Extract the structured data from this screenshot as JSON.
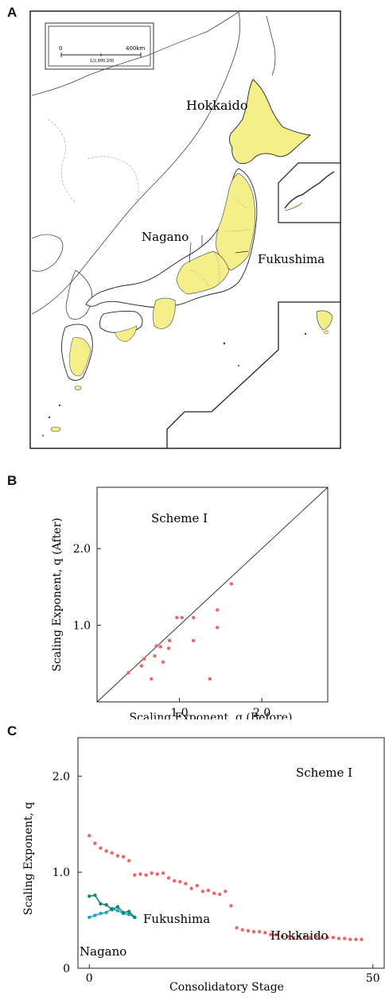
{
  "panels": {
    "a": {
      "letter": "A",
      "scale_bar": {
        "left": "0",
        "right": "400km",
        "note": "1/2,900,200"
      },
      "labels": {
        "hokkaido": "Hokkaido",
        "nagano": "Nagano",
        "fukushima": "Fukushima"
      },
      "colors": {
        "highlight": "#f5ef8a",
        "outline": "#222222"
      }
    },
    "b": {
      "letter": "B"
    },
    "c": {
      "letter": "C"
    }
  },
  "chart_data": [
    {
      "type": "scatter",
      "panel": "B",
      "annotation": "Scheme I",
      "xlabel": "Scaling Exponent, q (Before)",
      "ylabel": "Scaling Exponent, q (After)",
      "xlim": [
        0,
        2.8
      ],
      "ylim": [
        0,
        2.8
      ],
      "xticks": [
        1.0,
        2.0
      ],
      "yticks": [
        1.0,
        2.0
      ],
      "xticklabels": [
        "1.0",
        "2.0"
      ],
      "yticklabels": [
        "1.0",
        "2.0"
      ],
      "diagonal": true,
      "color": "#f06464",
      "points": [
        {
          "x": 0.38,
          "y": 0.38
        },
        {
          "x": 0.54,
          "y": 0.47
        },
        {
          "x": 0.57,
          "y": 0.56
        },
        {
          "x": 0.66,
          "y": 0.3
        },
        {
          "x": 0.7,
          "y": 0.6
        },
        {
          "x": 0.72,
          "y": 0.73
        },
        {
          "x": 0.77,
          "y": 0.72
        },
        {
          "x": 0.8,
          "y": 0.52
        },
        {
          "x": 0.87,
          "y": 0.7
        },
        {
          "x": 0.88,
          "y": 0.8
        },
        {
          "x": 0.97,
          "y": 1.1
        },
        {
          "x": 1.03,
          "y": 1.1
        },
        {
          "x": 1.17,
          "y": 1.1
        },
        {
          "x": 1.17,
          "y": 0.8
        },
        {
          "x": 1.37,
          "y": 0.3
        },
        {
          "x": 1.46,
          "y": 1.2
        },
        {
          "x": 1.46,
          "y": 0.97
        },
        {
          "x": 1.63,
          "y": 1.54
        }
      ]
    },
    {
      "type": "scatter",
      "panel": "C",
      "annotation": "Scheme I",
      "xlabel": "Consolidatory Stage",
      "ylabel": "Scaling Exponent, q",
      "xlim": [
        -2,
        52
      ],
      "ylim": [
        0,
        2.4
      ],
      "xticks": [
        0,
        50
      ],
      "yticks": [
        0,
        1.0,
        2.0
      ],
      "xticklabels": [
        "0",
        "50"
      ],
      "yticklabels": [
        "0",
        "1.0",
        "2.0"
      ],
      "series": [
        {
          "name": "Hokkaido",
          "color": "#f06464",
          "x": [
            0,
            1,
            2,
            3,
            4,
            5,
            6,
            7,
            8,
            9,
            10,
            11,
            12,
            13,
            14,
            15,
            16,
            17,
            18,
            19,
            20,
            21,
            22,
            23,
            24,
            25,
            26,
            27,
            28,
            29,
            30,
            31,
            32,
            33,
            34,
            35,
            36,
            37,
            38,
            39,
            40,
            41,
            42,
            43,
            44,
            45,
            46,
            47,
            48
          ],
          "y": [
            1.38,
            1.3,
            1.25,
            1.22,
            1.2,
            1.17,
            1.16,
            1.12,
            0.97,
            0.98,
            0.97,
            0.99,
            0.98,
            0.99,
            0.94,
            0.91,
            0.9,
            0.88,
            0.83,
            0.86,
            0.8,
            0.81,
            0.78,
            0.77,
            0.8,
            0.65,
            0.42,
            0.4,
            0.39,
            0.38,
            0.38,
            0.37,
            0.35,
            0.35,
            0.33,
            0.33,
            0.32,
            0.33,
            0.33,
            0.32,
            0.33,
            0.32,
            0.32,
            0.32,
            0.31,
            0.31,
            0.3,
            0.3,
            0.3
          ]
        },
        {
          "name": "Fukushima",
          "color": "#19a7c8",
          "x": [
            0,
            1,
            2,
            3,
            4,
            5,
            6,
            7,
            8
          ],
          "y": [
            0.53,
            0.55,
            0.57,
            0.58,
            0.62,
            0.6,
            0.57,
            0.56,
            0.53
          ]
        },
        {
          "name": "Nagano",
          "color": "#0f8a6a",
          "x": [
            0,
            1,
            2,
            3,
            4,
            5,
            6,
            7,
            8
          ],
          "y": [
            0.75,
            0.76,
            0.67,
            0.66,
            0.61,
            0.64,
            0.58,
            0.59,
            0.53
          ]
        }
      ]
    }
  ]
}
